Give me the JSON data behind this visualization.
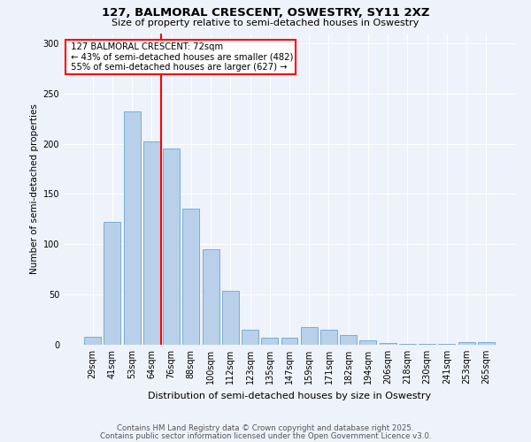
{
  "title1": "127, BALMORAL CRESCENT, OSWESTRY, SY11 2XZ",
  "title2": "Size of property relative to semi-detached houses in Oswestry",
  "xlabel": "Distribution of semi-detached houses by size in Oswestry",
  "ylabel": "Number of semi-detached properties",
  "categories": [
    "29sqm",
    "41sqm",
    "53sqm",
    "64sqm",
    "76sqm",
    "88sqm",
    "100sqm",
    "112sqm",
    "123sqm",
    "135sqm",
    "147sqm",
    "159sqm",
    "171sqm",
    "182sqm",
    "194sqm",
    "206sqm",
    "218sqm",
    "230sqm",
    "241sqm",
    "253sqm",
    "265sqm"
  ],
  "values": [
    8,
    122,
    232,
    202,
    195,
    135,
    95,
    54,
    15,
    7,
    7,
    18,
    15,
    10,
    4,
    2,
    1,
    1,
    1,
    3,
    3
  ],
  "bar_color": "#b8d0ea",
  "bar_edge_color": "#7aadd4",
  "property_line_index": 4,
  "property_label": "127 BALMORAL CRESCENT: 72sqm",
  "smaller_pct": "43%",
  "smaller_n": 482,
  "larger_pct": "55%",
  "larger_n": 627,
  "ylim": [
    0,
    310
  ],
  "yticks": [
    0,
    50,
    100,
    150,
    200,
    250,
    300
  ],
  "background_color": "#eef2fb",
  "grid_color": "#ffffff",
  "footer1": "Contains HM Land Registry data © Crown copyright and database right 2025.",
  "footer2": "Contains public sector information licensed under the Open Government Licence v3.0."
}
